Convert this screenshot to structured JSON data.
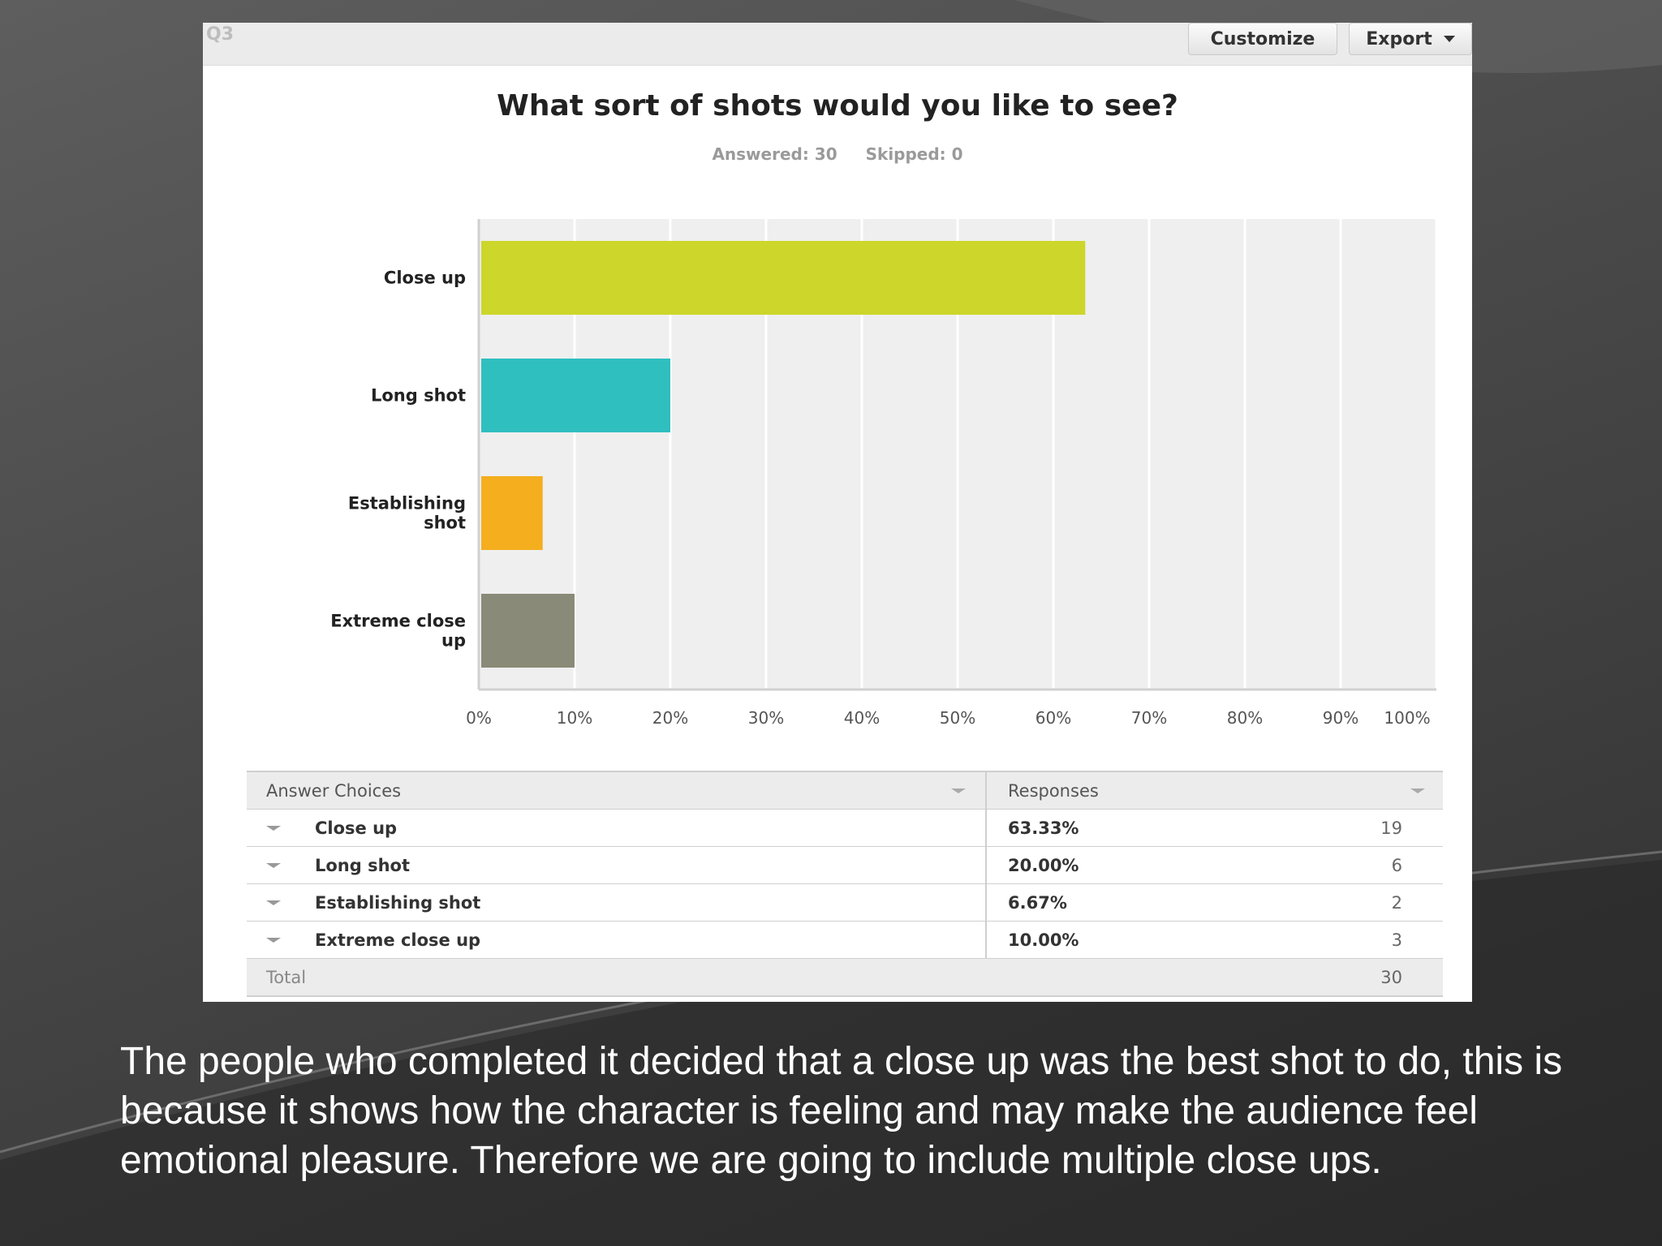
{
  "panel": {
    "question_label": "Q3",
    "customize_label": "Customize",
    "export_label": "Export",
    "answered": "Answered: 30",
    "skipped": "Skipped: 0"
  },
  "chart_data": {
    "type": "bar",
    "orientation": "horizontal",
    "title": "What sort of shots would you like to see?",
    "categories": [
      "Close up",
      "Long shot",
      "Establishing shot",
      "Extreme close up"
    ],
    "category_label_lines": [
      [
        "Close up"
      ],
      [
        "Long shot"
      ],
      [
        "Establishing",
        "shot"
      ],
      [
        "Extreme close",
        "up"
      ]
    ],
    "values": [
      63.33,
      20.0,
      6.67,
      10.0
    ],
    "colors": [
      "#cdd62b",
      "#2fbfbf",
      "#f4ae1e",
      "#8a8a78"
    ],
    "xlim": [
      0,
      100
    ],
    "xticks": [
      "0%",
      "10%",
      "20%",
      "30%",
      "40%",
      "50%",
      "60%",
      "70%",
      "80%",
      "90%",
      "100%"
    ],
    "grid": true
  },
  "table": {
    "headers": [
      "Answer Choices",
      "Responses"
    ],
    "rows": [
      {
        "choice": "Close up",
        "percent": "63.33%",
        "count": "19"
      },
      {
        "choice": "Long shot",
        "percent": "20.00%",
        "count": "6"
      },
      {
        "choice": "Establishing shot",
        "percent": "6.67%",
        "count": "2"
      },
      {
        "choice": "Extreme close up",
        "percent": "10.00%",
        "count": "3"
      }
    ],
    "total_label": "Total",
    "total_value": "30"
  },
  "caption": "The people who completed it decided that a close up was the best shot to do, this is because it shows how the character is feeling and may make the audience feel emotional pleasure. Therefore we are going to include multiple close ups."
}
